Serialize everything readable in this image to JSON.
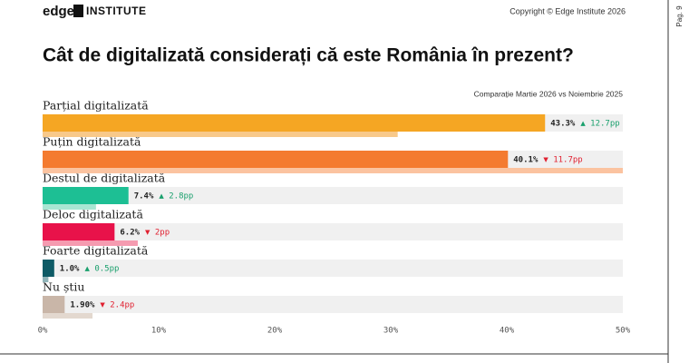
{
  "header": {
    "logo_left": "edge",
    "logo_right": "INSTITUTE",
    "copyright": "Copyright © Edge Institute 2026",
    "page": "Pag. 9"
  },
  "chart_data": {
    "type": "bar",
    "orientation": "horizontal",
    "title": "Cât de digitalizată considerați că este România în prezent?",
    "subtitle": "Comparație Martie 2026 vs Noiembrie 2025",
    "categories": [
      "Parțial digitalizată",
      "Puțin digitalizată",
      "Destul de digitalizată",
      "Deloc digitalizată",
      "Foarte digitalizată",
      "Nu știu"
    ],
    "values": [
      43.3,
      40.1,
      7.4,
      6.2,
      1.0,
      1.9
    ],
    "value_labels": [
      "43.3%",
      "40.1%",
      "7.4%",
      "6.2%",
      "1.0%",
      "1.90%"
    ],
    "colors": [
      "#f5a623",
      "#f47b30",
      "#1dbf94",
      "#e8124a",
      "#0e5b66",
      "#c9b6a8"
    ],
    "previous_values": [
      30.6,
      51.8,
      4.6,
      8.2,
      0.5,
      4.3
    ],
    "previous_colors": [
      "#f8c98a",
      "#fbc3a0",
      "#a8e6d3",
      "#f59bb0",
      "#8fb3b8",
      "#e3d8cf"
    ],
    "changes": [
      12.7,
      -11.7,
      2.8,
      -2,
      0.5,
      -2.4
    ],
    "change_labels": [
      "▲ 12.7pp",
      "▼ 11.7pp",
      "▲ 2.8pp",
      "▼ 2pp",
      "▲ 0.5pp",
      "▼ 2.4pp"
    ],
    "up_color": "#1aa06d",
    "down_color": "#e02030",
    "track_color": "#f0f0f0",
    "xlim": [
      0,
      50
    ],
    "xticks": [
      {
        "value": 0,
        "label": "0%"
      },
      {
        "value": 10,
        "label": "10%"
      },
      {
        "value": 20,
        "label": "20%"
      },
      {
        "value": 30,
        "label": "30%"
      },
      {
        "value": 40,
        "label": "40%"
      },
      {
        "value": 50,
        "label": "50%"
      }
    ]
  }
}
